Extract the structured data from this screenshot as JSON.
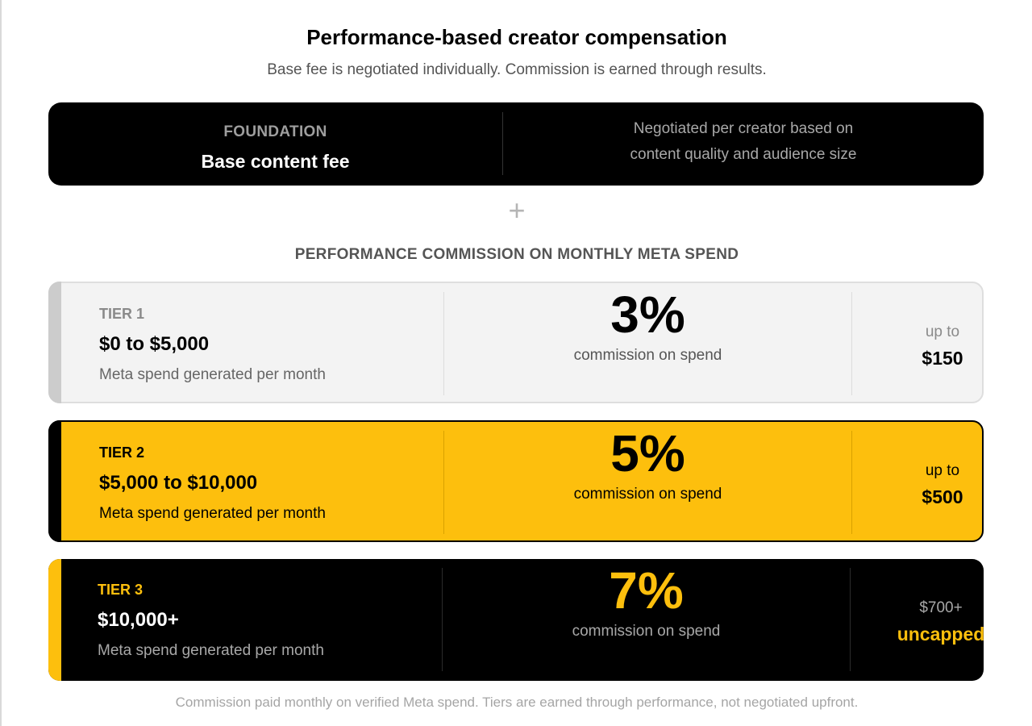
{
  "title": "Performance-based creator compensation",
  "subtitle": "Base fee is negotiated individually. Commission is earned through results.",
  "foundation": {
    "label": "FOUNDATION",
    "name": "Base content fee",
    "desc_line1": "Negotiated per creator based on",
    "desc_line2": "content quality and audience size"
  },
  "plus_symbol": "+",
  "section_heading": "PERFORMANCE COMMISSION ON MONTHLY META SPEND",
  "tiers": [
    {
      "label": "TIER 1",
      "range": "$0 to $5,000",
      "note": "Meta spend generated per month",
      "percent": "3%",
      "percent_caption": "commission on spend",
      "cap_top": "up to",
      "cap_value": "$150"
    },
    {
      "label": "TIER 2",
      "range": "$5,000 to $10,000",
      "note": "Meta spend generated per month",
      "percent": "5%",
      "percent_caption": "commission on spend",
      "cap_top": "up to",
      "cap_value": "$500"
    },
    {
      "label": "TIER 3",
      "range": "$10,000+",
      "note": "Meta spend generated per month",
      "percent": "7%",
      "percent_caption": "commission on spend",
      "cap_top": "$700+",
      "cap_value": "uncapped"
    }
  ],
  "footer": "Commission paid monthly on verified Meta spend. Tiers are earned through performance, not negotiated upfront.",
  "colors": {
    "accent_yellow": "#fdbf0d",
    "black": "#000000",
    "light_gray": "#f3f3f3"
  }
}
